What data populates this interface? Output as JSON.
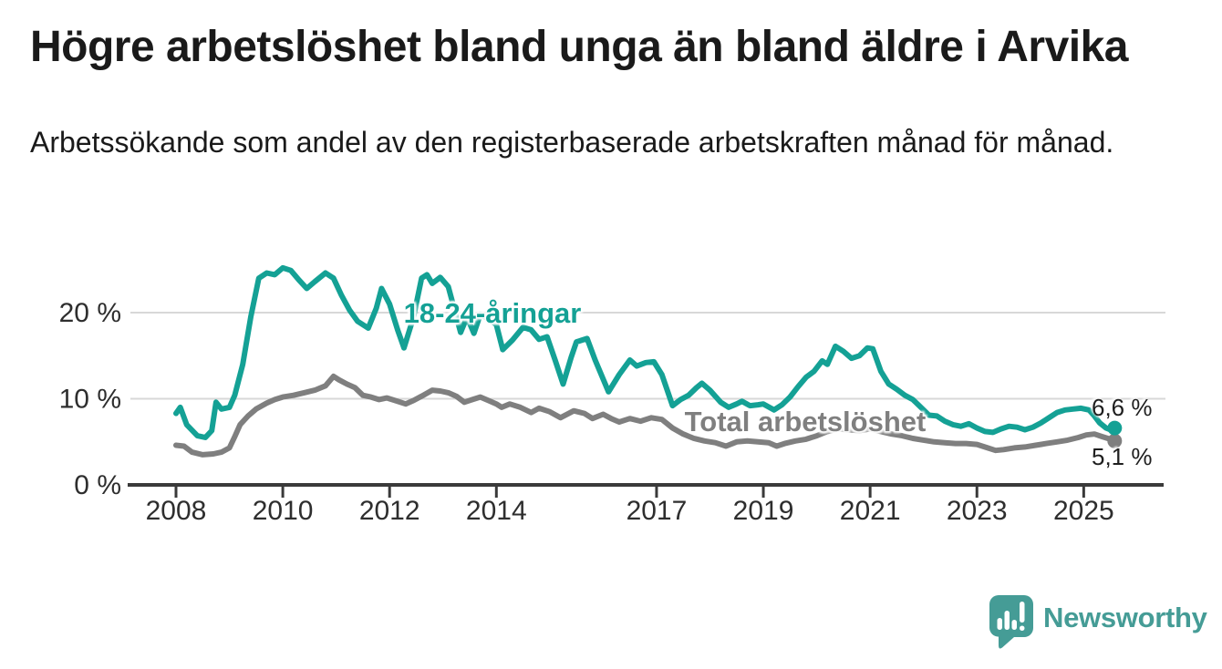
{
  "header": {
    "title": "Högre arbetslöshet bland unga än bland äldre i Arvika",
    "subtitle": "Arbetssökande som andel av den registerbaserade arbetskraften månad för månad."
  },
  "chart_data": {
    "type": "line",
    "title": "Högre arbetslöshet bland unga än bland äldre i Arvika",
    "subtitle": "Arbetssökande som andel av den registerbaserade arbetskraften månad för månad.",
    "xlabel": "",
    "ylabel": "",
    "grid": "horizontal",
    "legend_position": "inline-labels",
    "ylim": [
      0,
      27
    ],
    "x_start": 2008.0,
    "x_end": 2025.58,
    "x_ticks": {
      "labels": [
        "2008",
        "2010",
        "2012",
        "2014",
        "2017",
        "2019",
        "2021",
        "2023",
        "2025"
      ],
      "years": [
        2008,
        2010,
        2012,
        2014,
        2017,
        2019,
        2021,
        2023,
        2025
      ]
    },
    "y_ticks": {
      "labels": [
        "0 %",
        "10 %",
        "20 %"
      ],
      "values": [
        0,
        10,
        20
      ]
    },
    "series": [
      {
        "name": "18-24-åringar",
        "label": "18-24-åringar",
        "color": "#14a195",
        "end_label": "6,6 %",
        "end_value": 6.6,
        "points": [
          [
            2008.0,
            8.3
          ],
          [
            2008.08,
            9.0
          ],
          [
            2008.2,
            7.0
          ],
          [
            2008.4,
            5.7
          ],
          [
            2008.55,
            5.5
          ],
          [
            2008.67,
            6.3
          ],
          [
            2008.75,
            9.6
          ],
          [
            2008.85,
            8.8
          ],
          [
            2009.0,
            9.0
          ],
          [
            2009.1,
            10.4
          ],
          [
            2009.25,
            14.0
          ],
          [
            2009.4,
            19.5
          ],
          [
            2009.55,
            24.0
          ],
          [
            2009.7,
            24.6
          ],
          [
            2009.85,
            24.4
          ],
          [
            2010.0,
            25.2
          ],
          [
            2010.15,
            24.9
          ],
          [
            2010.3,
            23.8
          ],
          [
            2010.45,
            22.8
          ],
          [
            2010.6,
            23.6
          ],
          [
            2010.8,
            24.6
          ],
          [
            2010.95,
            24.0
          ],
          [
            2011.1,
            22.0
          ],
          [
            2011.25,
            20.3
          ],
          [
            2011.4,
            19.0
          ],
          [
            2011.6,
            18.2
          ],
          [
            2011.75,
            20.5
          ],
          [
            2011.85,
            22.8
          ],
          [
            2012.0,
            21.0
          ],
          [
            2012.15,
            18.0
          ],
          [
            2012.27,
            15.9
          ],
          [
            2012.45,
            19.5
          ],
          [
            2012.6,
            24.0
          ],
          [
            2012.7,
            24.4
          ],
          [
            2012.8,
            23.4
          ],
          [
            2012.95,
            24.1
          ],
          [
            2013.1,
            23.0
          ],
          [
            2013.33,
            17.7
          ],
          [
            2013.45,
            19.5
          ],
          [
            2013.58,
            17.6
          ],
          [
            2013.7,
            19.8
          ],
          [
            2013.85,
            19.3
          ],
          [
            2014.0,
            18.6
          ],
          [
            2014.12,
            15.7
          ],
          [
            2014.3,
            16.8
          ],
          [
            2014.5,
            18.3
          ],
          [
            2014.65,
            18.0
          ],
          [
            2014.8,
            16.9
          ],
          [
            2014.95,
            17.2
          ],
          [
            2015.1,
            14.5
          ],
          [
            2015.25,
            11.7
          ],
          [
            2015.4,
            14.8
          ],
          [
            2015.5,
            16.6
          ],
          [
            2015.7,
            17.0
          ],
          [
            2015.85,
            14.5
          ],
          [
            2016.1,
            10.8
          ],
          [
            2016.3,
            12.8
          ],
          [
            2016.5,
            14.5
          ],
          [
            2016.63,
            13.8
          ],
          [
            2016.8,
            14.2
          ],
          [
            2016.95,
            14.3
          ],
          [
            2017.1,
            12.8
          ],
          [
            2017.3,
            9.2
          ],
          [
            2017.45,
            9.9
          ],
          [
            2017.6,
            10.4
          ],
          [
            2017.75,
            11.3
          ],
          [
            2017.85,
            11.8
          ],
          [
            2018.0,
            11.0
          ],
          [
            2018.2,
            9.6
          ],
          [
            2018.35,
            9.0
          ],
          [
            2018.5,
            9.4
          ],
          [
            2018.6,
            9.7
          ],
          [
            2018.75,
            9.2
          ],
          [
            2018.9,
            9.3
          ],
          [
            2019.0,
            9.4
          ],
          [
            2019.2,
            8.7
          ],
          [
            2019.35,
            9.3
          ],
          [
            2019.5,
            10.2
          ],
          [
            2019.65,
            11.4
          ],
          [
            2019.8,
            12.5
          ],
          [
            2019.95,
            13.2
          ],
          [
            2020.1,
            14.4
          ],
          [
            2020.2,
            14.0
          ],
          [
            2020.35,
            16.1
          ],
          [
            2020.5,
            15.5
          ],
          [
            2020.65,
            14.7
          ],
          [
            2020.8,
            15.0
          ],
          [
            2020.95,
            15.9
          ],
          [
            2021.05,
            15.8
          ],
          [
            2021.2,
            13.2
          ],
          [
            2021.35,
            11.7
          ],
          [
            2021.5,
            11.1
          ],
          [
            2021.65,
            10.4
          ],
          [
            2021.8,
            9.9
          ],
          [
            2021.95,
            9.0
          ],
          [
            2022.1,
            8.1
          ],
          [
            2022.25,
            8.0
          ],
          [
            2022.4,
            7.4
          ],
          [
            2022.55,
            7.0
          ],
          [
            2022.7,
            6.8
          ],
          [
            2022.85,
            7.1
          ],
          [
            2023.0,
            6.6
          ],
          [
            2023.15,
            6.2
          ],
          [
            2023.3,
            6.1
          ],
          [
            2023.45,
            6.5
          ],
          [
            2023.6,
            6.8
          ],
          [
            2023.75,
            6.7
          ],
          [
            2023.9,
            6.4
          ],
          [
            2024.05,
            6.7
          ],
          [
            2024.2,
            7.2
          ],
          [
            2024.35,
            7.8
          ],
          [
            2024.5,
            8.4
          ],
          [
            2024.65,
            8.7
          ],
          [
            2024.8,
            8.8
          ],
          [
            2024.95,
            8.9
          ],
          [
            2025.1,
            8.7
          ],
          [
            2025.2,
            8.0
          ],
          [
            2025.3,
            7.2
          ],
          [
            2025.42,
            6.6
          ],
          [
            2025.5,
            6.4
          ],
          [
            2025.58,
            6.6
          ]
        ]
      },
      {
        "name": "Total arbetslöshet",
        "label": "Total arbetslöshet",
        "color": "#7f7f7f",
        "end_label": "5,1 %",
        "end_value": 5.1,
        "points": [
          [
            2008.0,
            4.6
          ],
          [
            2008.15,
            4.5
          ],
          [
            2008.3,
            3.8
          ],
          [
            2008.5,
            3.5
          ],
          [
            2008.7,
            3.6
          ],
          [
            2008.85,
            3.8
          ],
          [
            2009.0,
            4.3
          ],
          [
            2009.1,
            5.6
          ],
          [
            2009.2,
            7.0
          ],
          [
            2009.35,
            8.0
          ],
          [
            2009.5,
            8.8
          ],
          [
            2009.7,
            9.5
          ],
          [
            2009.85,
            9.9
          ],
          [
            2010.0,
            10.2
          ],
          [
            2010.2,
            10.4
          ],
          [
            2010.4,
            10.7
          ],
          [
            2010.6,
            11.0
          ],
          [
            2010.8,
            11.5
          ],
          [
            2010.95,
            12.6
          ],
          [
            2011.05,
            12.2
          ],
          [
            2011.2,
            11.7
          ],
          [
            2011.35,
            11.3
          ],
          [
            2011.5,
            10.4
          ],
          [
            2011.65,
            10.2
          ],
          [
            2011.8,
            9.9
          ],
          [
            2011.95,
            10.1
          ],
          [
            2012.1,
            9.8
          ],
          [
            2012.3,
            9.4
          ],
          [
            2012.45,
            9.8
          ],
          [
            2012.6,
            10.3
          ],
          [
            2012.8,
            11.0
          ],
          [
            2012.95,
            10.9
          ],
          [
            2013.1,
            10.7
          ],
          [
            2013.25,
            10.3
          ],
          [
            2013.4,
            9.6
          ],
          [
            2013.55,
            9.9
          ],
          [
            2013.7,
            10.2
          ],
          [
            2013.85,
            9.8
          ],
          [
            2014.0,
            9.4
          ],
          [
            2014.1,
            9.0
          ],
          [
            2014.25,
            9.4
          ],
          [
            2014.45,
            9.0
          ],
          [
            2014.65,
            8.4
          ],
          [
            2014.8,
            8.9
          ],
          [
            2015.0,
            8.5
          ],
          [
            2015.2,
            7.8
          ],
          [
            2015.45,
            8.6
          ],
          [
            2015.65,
            8.3
          ],
          [
            2015.8,
            7.7
          ],
          [
            2016.0,
            8.2
          ],
          [
            2016.15,
            7.7
          ],
          [
            2016.3,
            7.3
          ],
          [
            2016.5,
            7.7
          ],
          [
            2016.7,
            7.4
          ],
          [
            2016.9,
            7.8
          ],
          [
            2017.1,
            7.6
          ],
          [
            2017.3,
            6.6
          ],
          [
            2017.5,
            5.9
          ],
          [
            2017.7,
            5.4
          ],
          [
            2017.9,
            5.1
          ],
          [
            2018.1,
            4.9
          ],
          [
            2018.3,
            4.5
          ],
          [
            2018.5,
            5.0
          ],
          [
            2018.7,
            5.1
          ],
          [
            2018.9,
            5.0
          ],
          [
            2019.1,
            4.9
          ],
          [
            2019.25,
            4.5
          ],
          [
            2019.4,
            4.8
          ],
          [
            2019.6,
            5.1
          ],
          [
            2019.8,
            5.3
          ],
          [
            2020.0,
            5.7
          ],
          [
            2020.2,
            6.2
          ],
          [
            2020.4,
            6.5
          ],
          [
            2020.6,
            6.4
          ],
          [
            2020.8,
            6.3
          ],
          [
            2021.0,
            6.5
          ],
          [
            2021.2,
            6.2
          ],
          [
            2021.4,
            5.9
          ],
          [
            2021.6,
            5.7
          ],
          [
            2021.8,
            5.4
          ],
          [
            2022.0,
            5.2
          ],
          [
            2022.2,
            5.0
          ],
          [
            2022.4,
            4.9
          ],
          [
            2022.6,
            4.8
          ],
          [
            2022.8,
            4.8
          ],
          [
            2023.0,
            4.7
          ],
          [
            2023.2,
            4.3
          ],
          [
            2023.35,
            4.0
          ],
          [
            2023.5,
            4.1
          ],
          [
            2023.7,
            4.3
          ],
          [
            2023.9,
            4.4
          ],
          [
            2024.1,
            4.6
          ],
          [
            2024.3,
            4.8
          ],
          [
            2024.5,
            5.0
          ],
          [
            2024.7,
            5.2
          ],
          [
            2024.9,
            5.5
          ],
          [
            2025.05,
            5.8
          ],
          [
            2025.2,
            5.9
          ],
          [
            2025.35,
            5.6
          ],
          [
            2025.5,
            5.3
          ],
          [
            2025.58,
            5.1
          ]
        ]
      }
    ]
  },
  "colors": {
    "background": "#ffffff",
    "axis": "#3a3a3a",
    "grid": "#d8d8d8",
    "tick_text": "#2e2e2e",
    "title_text": "#1a1a1a",
    "youth_line": "#14a195",
    "total_line": "#7f7f7f",
    "brand": "#459c96"
  },
  "branding": {
    "wordmark": "Newsworthy",
    "icon": "newsworthy-speech-bubble-bar-chart-icon"
  }
}
